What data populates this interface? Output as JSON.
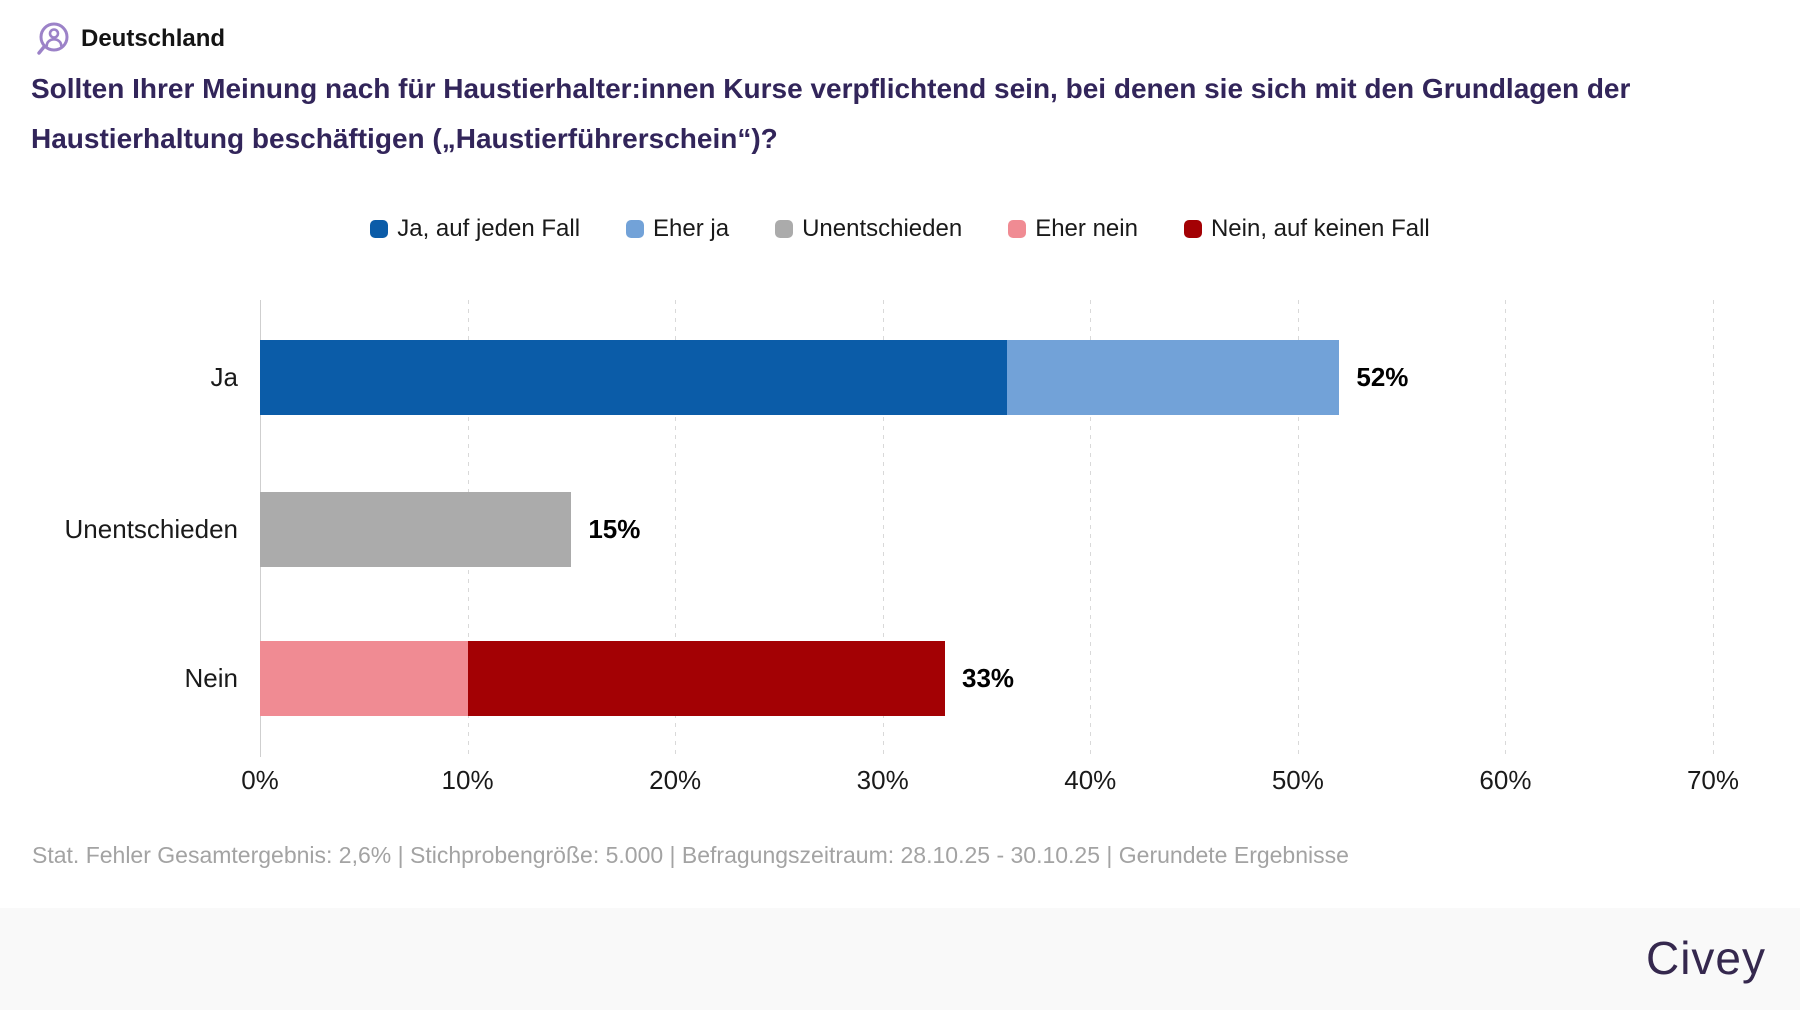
{
  "header": {
    "icon": "person-circle-icon",
    "region": "Deutschland",
    "question": "Sollten Ihrer Meinung nach für Haustierhalter:innen Kurse verpflichtend sein, bei denen sie sich mit den Grundlagen der Haustierhaltung beschäftigen („Haustierführerschein“)?"
  },
  "chart_data": {
    "type": "bar",
    "orientation": "horizontal",
    "stacked": true,
    "title": "",
    "xlabel": "",
    "ylabel": "",
    "xlim": [
      0,
      70
    ],
    "x_ticks": [
      "0%",
      "10%",
      "20%",
      "30%",
      "40%",
      "50%",
      "60%",
      "70%"
    ],
    "grid": "vertical-dotted",
    "legend_position": "top-center",
    "categories": [
      "Ja",
      "Unentschieden",
      "Nein"
    ],
    "series": [
      {
        "name": "Ja, auf jeden Fall",
        "color": "#0b5ca8",
        "values": [
          36,
          0,
          0
        ]
      },
      {
        "name": "Eher ja",
        "color": "#72a2d8",
        "values": [
          16,
          0,
          0
        ]
      },
      {
        "name": "Unentschieden",
        "color": "#ababab",
        "values": [
          0,
          15,
          0
        ]
      },
      {
        "name": "Eher nein",
        "color": "#f08b93",
        "values": [
          0,
          0,
          10
        ]
      },
      {
        "name": "Nein, auf keinen Fall",
        "color": "#a30104",
        "values": [
          0,
          0,
          23
        ]
      }
    ],
    "totals": [
      "52%",
      "15%",
      "33%"
    ]
  },
  "footer": {
    "note": "Stat. Fehler Gesamtergebnis: 2,6% | Stichprobengröße: 5.000 | Befragungszeitraum: 28.10.25 - 30.10.25 | Gerundete Ergebnisse",
    "brand": "Civey"
  }
}
